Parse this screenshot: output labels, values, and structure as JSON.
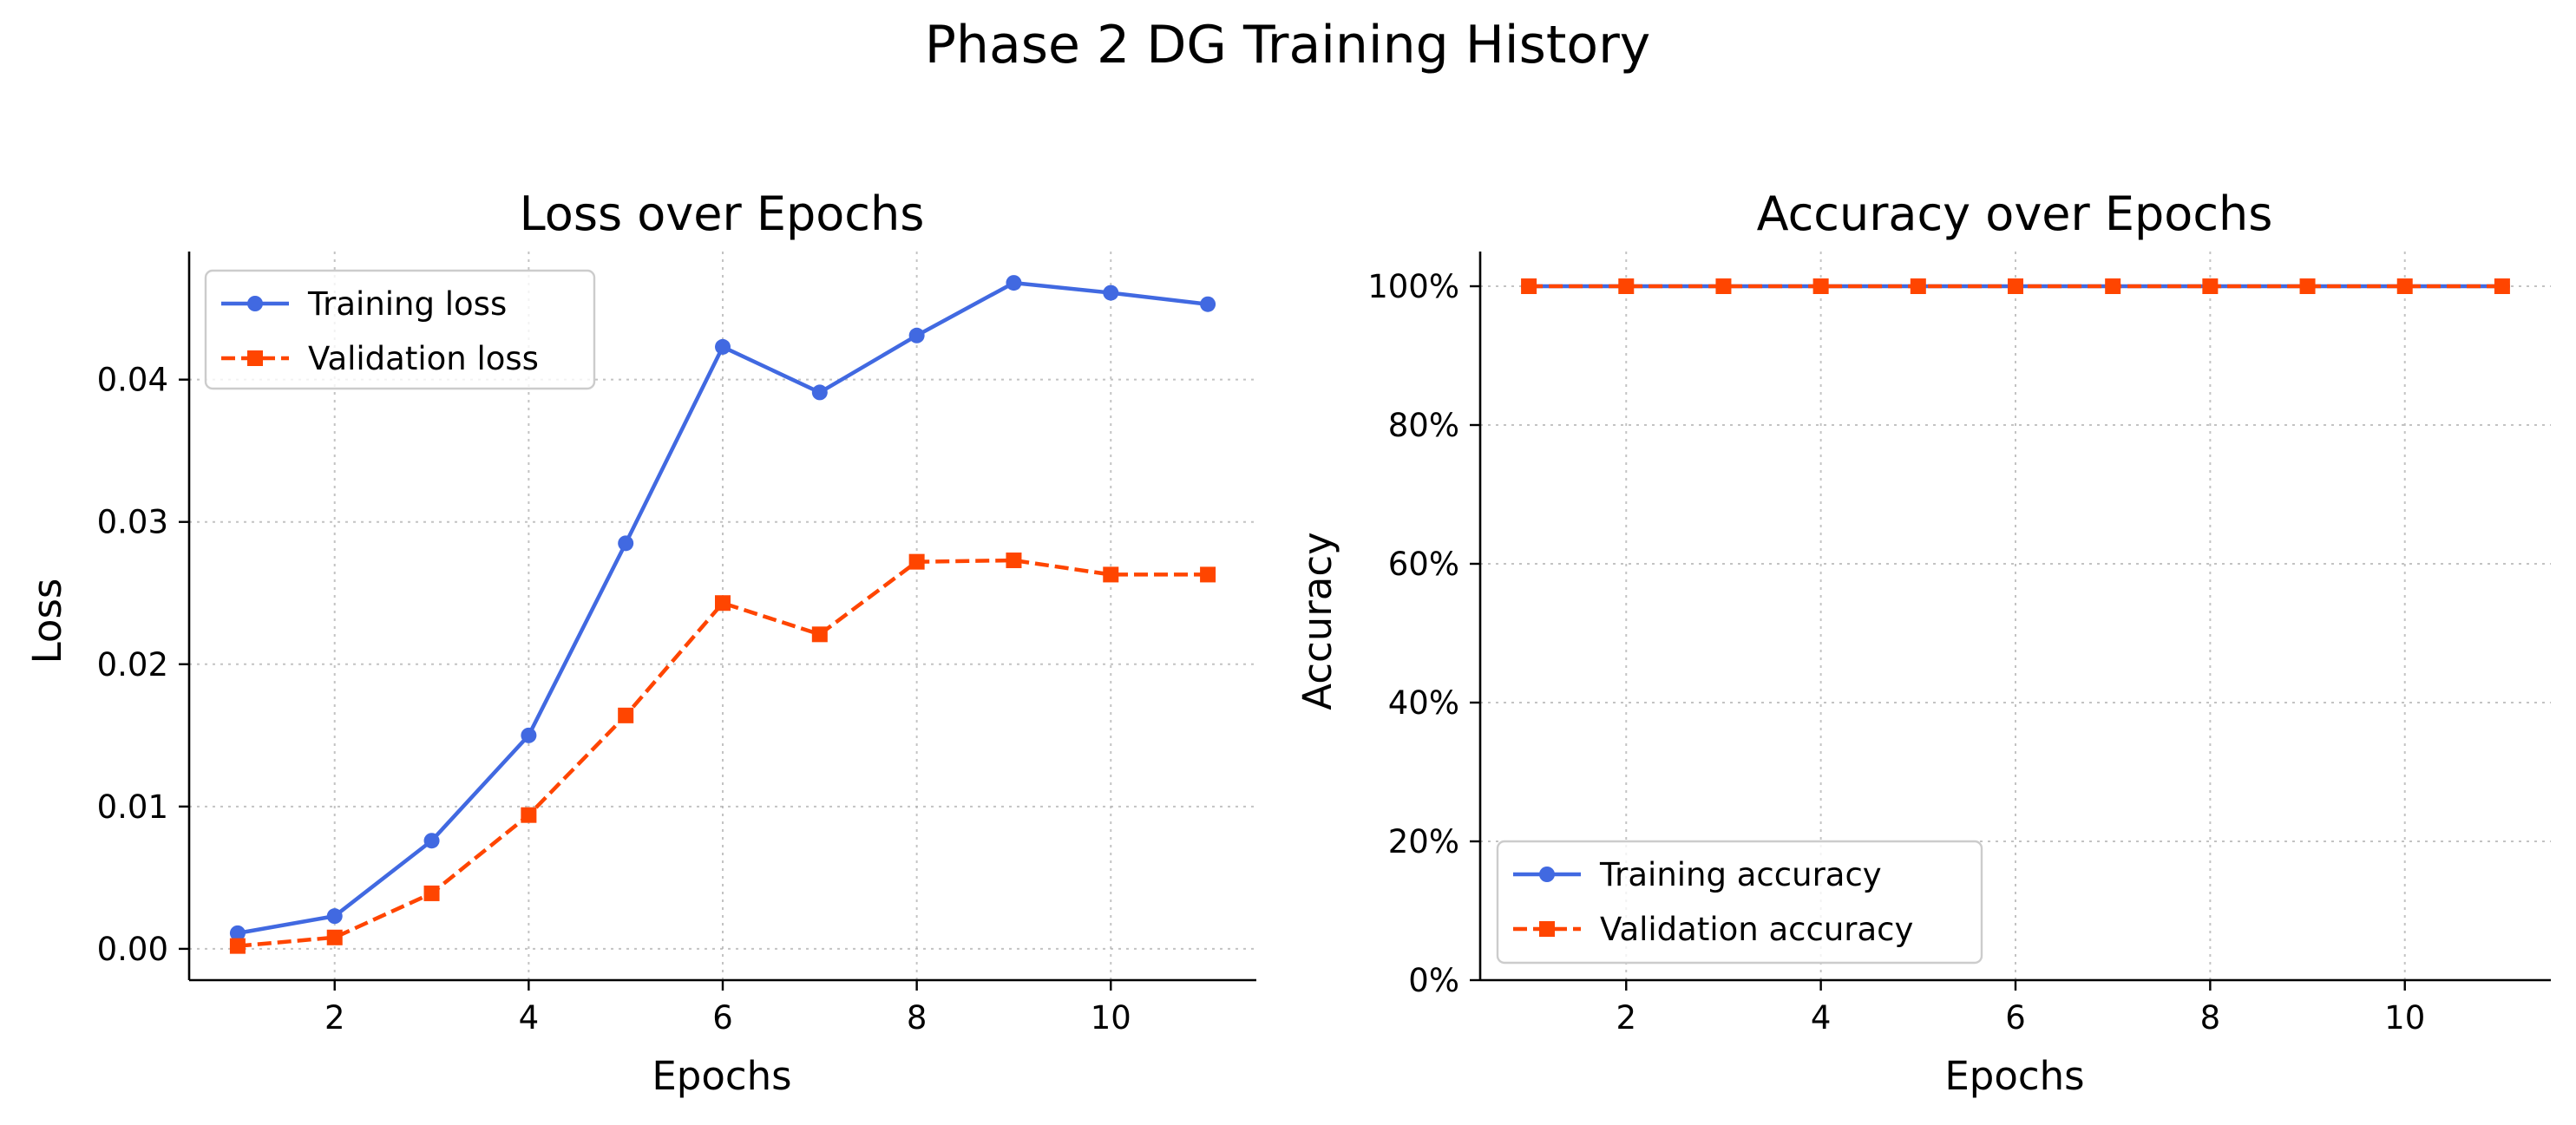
{
  "figure": {
    "suptitle": "Phase 2 DG Training History"
  },
  "colors": {
    "training": "#4169e1",
    "validation": "#ff4500"
  },
  "chart_data": [
    {
      "type": "line",
      "title": "Loss over Epochs",
      "xlabel": "Epochs",
      "ylabel": "Loss",
      "xlim": [
        0.5,
        11.5
      ],
      "ylim": [
        -0.0022,
        0.049
      ],
      "xticks": [
        2,
        4,
        6,
        8,
        10
      ],
      "xtick_labels": [
        "2",
        "4",
        "6",
        "8",
        "10"
      ],
      "yticks": [
        0.0,
        0.01,
        0.02,
        0.03,
        0.04
      ],
      "ytick_labels": [
        "0.00",
        "0.01",
        "0.02",
        "0.03",
        "0.04"
      ],
      "grid": true,
      "legend_position": "upper left",
      "x": [
        1,
        2,
        3,
        4,
        5,
        6,
        7,
        8,
        9,
        10,
        11
      ],
      "series": [
        {
          "name": "Training loss",
          "color": "#4169e1",
          "marker": "circle",
          "linestyle": "solid",
          "values": [
            0.0011,
            0.0023,
            0.0076,
            0.015,
            0.0285,
            0.0423,
            0.0391,
            0.0431,
            0.0468,
            0.0461,
            0.0453
          ]
        },
        {
          "name": "Validation loss",
          "color": "#ff4500",
          "marker": "square",
          "linestyle": "dashed",
          "values": [
            0.0002,
            0.0008,
            0.0039,
            0.0094,
            0.0164,
            0.0243,
            0.0221,
            0.0272,
            0.0273,
            0.0263,
            0.0263
          ]
        }
      ]
    },
    {
      "type": "line",
      "title": "Accuracy over Epochs",
      "xlabel": "Epochs",
      "ylabel": "Accuracy",
      "xlim": [
        0.5,
        11.5
      ],
      "ylim": [
        0,
        1.05
      ],
      "xticks": [
        2,
        4,
        6,
        8,
        10
      ],
      "xtick_labels": [
        "2",
        "4",
        "6",
        "8",
        "10"
      ],
      "yticks": [
        0,
        0.2,
        0.4,
        0.6,
        0.8,
        1.0
      ],
      "ytick_labels": [
        "0%",
        "20%",
        "40%",
        "60%",
        "80%",
        "100%"
      ],
      "grid": true,
      "legend_position": "lower left",
      "x": [
        1,
        2,
        3,
        4,
        5,
        6,
        7,
        8,
        9,
        10,
        11
      ],
      "series": [
        {
          "name": "Training accuracy",
          "color": "#4169e1",
          "marker": "circle",
          "linestyle": "solid",
          "values": [
            1.0,
            1.0,
            1.0,
            1.0,
            1.0,
            1.0,
            1.0,
            1.0,
            1.0,
            1.0,
            1.0
          ]
        },
        {
          "name": "Validation accuracy",
          "color": "#ff4500",
          "marker": "square",
          "linestyle": "dashed",
          "values": [
            1.0,
            1.0,
            1.0,
            1.0,
            1.0,
            1.0,
            1.0,
            1.0,
            1.0,
            1.0,
            1.0
          ]
        }
      ]
    }
  ]
}
